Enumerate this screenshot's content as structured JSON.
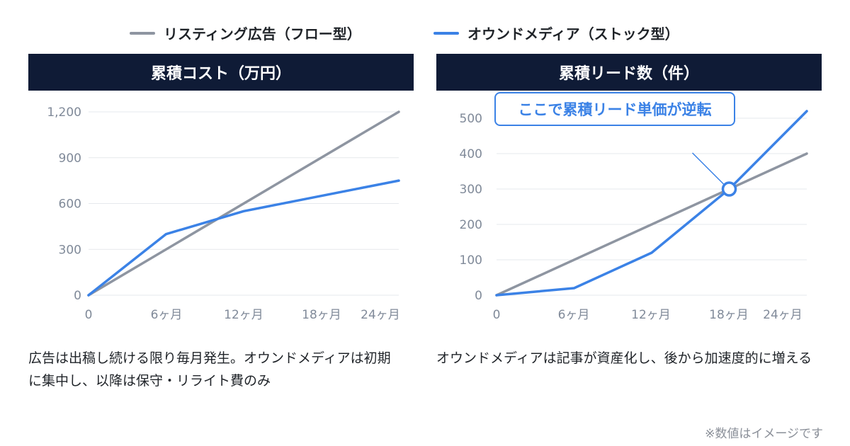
{
  "legend": {
    "items": [
      {
        "label": "リスティング広告（フロー型）",
        "color": "#8e95a1"
      },
      {
        "label": "オウンドメディア（ストック型）",
        "color": "#3b82e6"
      }
    ]
  },
  "chart_data": [
    {
      "type": "line",
      "title": "累積コスト（万円）",
      "x_labels": [
        "0",
        "6ヶ月",
        "12ヶ月",
        "18ヶ月",
        "24ヶ月"
      ],
      "y_ticks": [
        "0",
        "300",
        "600",
        "900",
        "1,200"
      ],
      "ylim": [
        0,
        1200
      ],
      "grid": true,
      "legend_position": "top",
      "series": [
        {
          "name": "リスティング広告（フロー型）",
          "color": "#8e95a1",
          "x": [
            0,
            24
          ],
          "y": [
            0,
            1200
          ]
        },
        {
          "name": "オウンドメディア（ストック型）",
          "color": "#3b82e6",
          "x": [
            0,
            6,
            12,
            24
          ],
          "y": [
            0,
            400,
            550,
            750
          ]
        }
      ],
      "caption": "広告は出稿し続ける限り毎月発生。オウンドメディアは初期に集中し、以降は保守・リライト費のみ"
    },
    {
      "type": "line",
      "title": "累積リード数（件）",
      "x_labels": [
        "0",
        "6ヶ月",
        "12ヶ月",
        "18ヶ月",
        "24ヶ月"
      ],
      "y_ticks": [
        "0",
        "100",
        "200",
        "300",
        "400",
        "500"
      ],
      "ylim": [
        0,
        500
      ],
      "grid": true,
      "legend_position": "top",
      "series": [
        {
          "name": "リスティング広告（フロー型）",
          "color": "#8e95a1",
          "x": [
            0,
            24
          ],
          "y": [
            0,
            400
          ]
        },
        {
          "name": "オウンドメディア（ストック型）",
          "color": "#3b82e6",
          "x": [
            0,
            6,
            12,
            18,
            24
          ],
          "y": [
            0,
            20,
            120,
            300,
            520
          ]
        }
      ],
      "annotation": {
        "text": "ここで累積リード単価が逆転",
        "x": 18,
        "y": 300
      },
      "caption": "オウンドメディアは記事が資産化し、後から加速度的に増える"
    }
  ],
  "footer": {
    "note": "※数値はイメージです"
  }
}
